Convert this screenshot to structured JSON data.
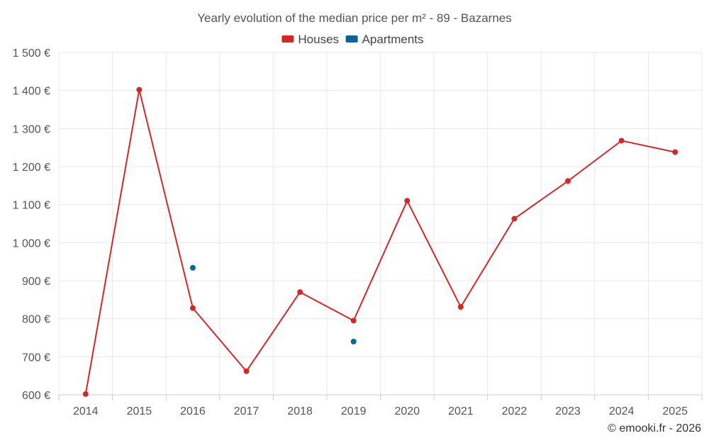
{
  "chart_data": {
    "type": "line",
    "title": "Yearly evolution of the median price per m² - 89 - Bazarnes",
    "categories": [
      "2014",
      "2015",
      "2016",
      "2017",
      "2018",
      "2019",
      "2020",
      "2021",
      "2022",
      "2023",
      "2024",
      "2025"
    ],
    "ylim": [
      600,
      1500
    ],
    "yticks": [
      600,
      700,
      800,
      900,
      1000,
      1100,
      1200,
      1300,
      1400,
      1500
    ],
    "ytick_labels": [
      "600 €",
      "700 €",
      "800 €",
      "900 €",
      "1 000 €",
      "1 100 €",
      "1 200 €",
      "1 300 €",
      "1 400 €",
      "1 500 €"
    ],
    "xlabel": "",
    "ylabel": "",
    "grid": true,
    "legend_position": "top-center",
    "series": [
      {
        "name": "Houses",
        "color": "#d62728",
        "style": "line-markers",
        "values": [
          602,
          1402,
          828,
          662,
          870,
          795,
          1110,
          831,
          1063,
          1162,
          1268,
          1238
        ]
      },
      {
        "name": "Apartments",
        "color": "#0a6496",
        "style": "markers",
        "values": [
          null,
          null,
          934,
          null,
          null,
          740,
          null,
          null,
          null,
          null,
          null,
          null
        ]
      }
    ]
  },
  "credit": "© emooki.fr - 2026"
}
